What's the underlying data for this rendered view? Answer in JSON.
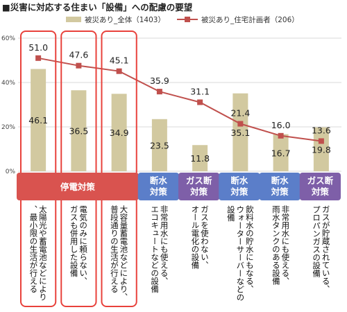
{
  "title": "■災害に対応する住まい「設備」への配慮の要望",
  "chart_data": {
    "type": "bar",
    "title": "■災害に対応する住まい「設備」への配慮の要望",
    "ylim": [
      0,
      60
    ],
    "y_ticks": [
      "0%",
      "20%",
      "40%",
      "60%"
    ],
    "grid": true,
    "legend_position": "top",
    "series": [
      {
        "name": "被災あり_全体（1403）",
        "type": "bar",
        "color": "#d2c9a0",
        "values": [
          46.1,
          36.5,
          34.9,
          23.5,
          11.8,
          35.1,
          16.7,
          19.8
        ],
        "labels": [
          "46.1",
          "36.5",
          "34.9",
          "23.5",
          "11.8",
          "35.1",
          "16.7",
          "19.8"
        ]
      },
      {
        "name": "被災あり_住宅計画者（206）",
        "type": "line",
        "color": "#c0504d",
        "values": [
          51.0,
          47.6,
          45.1,
          35.9,
          31.1,
          21.4,
          16.0,
          13.6
        ],
        "labels": [
          "51.0",
          "47.6",
          "45.1",
          "35.9",
          "31.1",
          "21.4",
          "16.0",
          "13.6"
        ]
      }
    ],
    "categories": [
      "太陽光や蓄電池などにより、最小限の生活が行える",
      "電気のみに頼らない、ガスも併用した設備",
      "大容量蓄電池などにより、普段通りの生活が行える",
      "非常用水にも使える、エコキュートなどの設備",
      "ガスを使わない、オール電化の設備",
      "飲料水の貯水にもなる、ウォーターサーバーなどの設備",
      "非常用水にも使える、雨水タンクのある設備",
      "ガスが貯蔵されている、プロパンガスの設備"
    ],
    "groups": [
      {
        "label": "停電対策",
        "color": "#d9534f"
      },
      {
        "label": "断水\n対策",
        "color": "#5b7ec9"
      },
      {
        "label": "ガス断\n対策",
        "color": "#7e5fa8"
      },
      {
        "label": "断水\n対策",
        "color": "#5b7ec9"
      },
      {
        "label": "断水\n対策",
        "color": "#5b7ec9"
      },
      {
        "label": "ガス断\n対策",
        "color": "#7e5fa8"
      }
    ],
    "highlight_color": "#e8413b"
  }
}
